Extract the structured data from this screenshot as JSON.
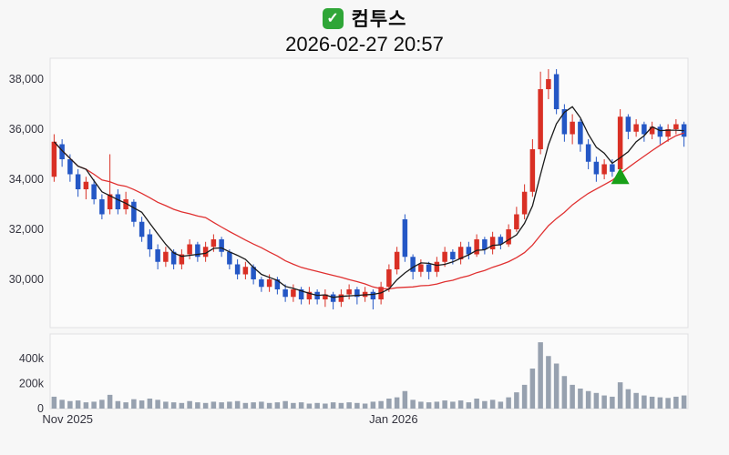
{
  "header": {
    "check_glyph": "✓",
    "title": "컴투스",
    "subtitle": "2026-02-27 20:57"
  },
  "colors": {
    "up": "#d93025",
    "down": "#2457c5",
    "ma_fast": "#1a1a1a",
    "ma_slow": "#e03030",
    "volume_bar": "#97a1af",
    "marker_green": "#18a018",
    "check_bg": "#2fa637",
    "axis_text": "#34343f",
    "plot_fill": "#fbfbfb",
    "plot_border": "#e0e0e3"
  },
  "chart_data": {
    "type": "candlestick_with_volume",
    "title": "컴투스",
    "timestamp": "2026-02-27 20:57",
    "y_axis": {
      "ticks": [
        30000,
        32000,
        34000,
        36000,
        38000
      ],
      "labels": [
        "30,000",
        "32,000",
        "34,000",
        "36,000",
        "38,000"
      ]
    },
    "volume_axis": {
      "ticks": [
        0,
        200000,
        400000
      ],
      "labels": [
        "0",
        "200k",
        "400k"
      ]
    },
    "x_axis_labels": [
      {
        "label": "Nov 2025",
        "index": 0
      },
      {
        "label": "Jan 2026",
        "index": 41
      }
    ],
    "overlays": {
      "ma_fast_period": 5,
      "ma_slow_period": 20
    },
    "markers": [
      {
        "type": "triangle-up",
        "index": 71,
        "price": 34100
      }
    ],
    "ohlcv": [
      [
        34100,
        35800,
        33900,
        35500,
        95000
      ],
      [
        35400,
        35600,
        34500,
        34800,
        70000
      ],
      [
        34800,
        35000,
        33900,
        34200,
        60000
      ],
      [
        34200,
        34400,
        33300,
        33600,
        65000
      ],
      [
        33600,
        34100,
        33200,
        33900,
        50000
      ],
      [
        33800,
        34000,
        33000,
        33200,
        55000
      ],
      [
        33200,
        33400,
        32400,
        32600,
        70000
      ],
      [
        32800,
        35000,
        32600,
        33400,
        110000
      ],
      [
        33400,
        33600,
        32600,
        32800,
        60000
      ],
      [
        32800,
        33500,
        32600,
        33200,
        50000
      ],
      [
        33100,
        33200,
        32100,
        32300,
        75000
      ],
      [
        32300,
        32500,
        31500,
        31700,
        65000
      ],
      [
        31800,
        32000,
        30900,
        31200,
        80000
      ],
      [
        31200,
        31400,
        30400,
        30700,
        70000
      ],
      [
        30700,
        31300,
        30500,
        31100,
        55000
      ],
      [
        31100,
        31200,
        30400,
        30600,
        50000
      ],
      [
        30600,
        31200,
        30400,
        31000,
        45000
      ],
      [
        31000,
        31600,
        30800,
        31400,
        60000
      ],
      [
        31400,
        31500,
        30700,
        30900,
        50000
      ],
      [
        30900,
        31500,
        30700,
        31300,
        45000
      ],
      [
        31300,
        31800,
        31100,
        31600,
        55000
      ],
      [
        31600,
        31700,
        30900,
        31100,
        50000
      ],
      [
        31100,
        31200,
        30400,
        30600,
        55000
      ],
      [
        30600,
        30800,
        30000,
        30200,
        60000
      ],
      [
        30200,
        30700,
        30000,
        30500,
        45000
      ],
      [
        30500,
        30600,
        29800,
        30000,
        50000
      ],
      [
        30000,
        30100,
        29500,
        29700,
        55000
      ],
      [
        29700,
        30200,
        29500,
        30000,
        45000
      ],
      [
        30000,
        30100,
        29400,
        29600,
        50000
      ],
      [
        29600,
        29800,
        29100,
        29300,
        60000
      ],
      [
        29300,
        29800,
        29100,
        29600,
        45000
      ],
      [
        29600,
        29700,
        29000,
        29200,
        50000
      ],
      [
        29200,
        29700,
        29000,
        29500,
        40000
      ],
      [
        29500,
        29600,
        29000,
        29200,
        45000
      ],
      [
        29200,
        29600,
        28900,
        29400,
        40000
      ],
      [
        29400,
        29500,
        28800,
        29100,
        50000
      ],
      [
        29100,
        29600,
        28900,
        29400,
        45000
      ],
      [
        29400,
        29800,
        29200,
        29600,
        50000
      ],
      [
        29600,
        29700,
        29000,
        29300,
        45000
      ],
      [
        29300,
        29700,
        29100,
        29500,
        40000
      ],
      [
        29500,
        29600,
        28800,
        29200,
        55000
      ],
      [
        29200,
        29900,
        29000,
        29700,
        60000
      ],
      [
        29700,
        30600,
        29500,
        30400,
        80000
      ],
      [
        30400,
        31300,
        30200,
        31100,
        90000
      ],
      [
        32400,
        32600,
        30700,
        30900,
        140000
      ],
      [
        30900,
        31000,
        30000,
        30300,
        70000
      ],
      [
        30300,
        30800,
        30100,
        30600,
        55000
      ],
      [
        30600,
        30700,
        30000,
        30300,
        50000
      ],
      [
        30300,
        30900,
        30100,
        30700,
        55000
      ],
      [
        30700,
        31300,
        30500,
        31100,
        65000
      ],
      [
        31100,
        31200,
        30600,
        30800,
        55000
      ],
      [
        30800,
        31500,
        30600,
        31300,
        65000
      ],
      [
        31300,
        31500,
        30800,
        31000,
        50000
      ],
      [
        31000,
        31800,
        30900,
        31600,
        80000
      ],
      [
        31600,
        31700,
        31000,
        31200,
        60000
      ],
      [
        31200,
        31900,
        31000,
        31700,
        70000
      ],
      [
        31700,
        31800,
        31200,
        31400,
        55000
      ],
      [
        31400,
        32200,
        31300,
        32000,
        90000
      ],
      [
        32000,
        32900,
        31900,
        32600,
        130000
      ],
      [
        32600,
        33800,
        32400,
        33500,
        190000
      ],
      [
        33500,
        35600,
        33300,
        35200,
        320000
      ],
      [
        35200,
        38300,
        35000,
        37600,
        530000
      ],
      [
        37600,
        38400,
        37200,
        38000,
        420000
      ],
      [
        38200,
        38400,
        36600,
        36800,
        360000
      ],
      [
        36800,
        37000,
        35500,
        35800,
        260000
      ],
      [
        35800,
        36600,
        35400,
        36300,
        190000
      ],
      [
        36300,
        36400,
        35100,
        35400,
        160000
      ],
      [
        35400,
        35600,
        34400,
        34700,
        140000
      ],
      [
        34700,
        34900,
        33900,
        34200,
        125000
      ],
      [
        34200,
        34800,
        34000,
        34600,
        105000
      ],
      [
        34600,
        34800,
        34100,
        34300,
        95000
      ],
      [
        34400,
        36800,
        34200,
        36500,
        210000
      ],
      [
        36500,
        36600,
        35600,
        35900,
        155000
      ],
      [
        35900,
        36400,
        35700,
        36200,
        125000
      ],
      [
        36200,
        36300,
        35500,
        35800,
        105000
      ],
      [
        35800,
        36300,
        35600,
        36100,
        95000
      ],
      [
        36100,
        36200,
        35400,
        35700,
        90000
      ],
      [
        35700,
        36200,
        35500,
        36000,
        85000
      ],
      [
        36000,
        36400,
        35800,
        36200,
        95000
      ],
      [
        36200,
        36300,
        35300,
        35700,
        105000
      ]
    ]
  }
}
